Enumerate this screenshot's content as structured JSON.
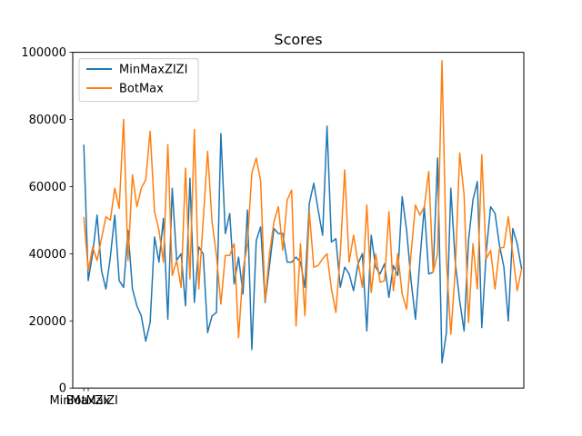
{
  "chart_data": {
    "type": "line",
    "title": "Scores",
    "xlabel": "",
    "ylabel": "",
    "ylim": [
      0,
      100000
    ],
    "yticks": [
      0,
      20000,
      40000,
      60000,
      80000,
      100000
    ],
    "yticklabels": [
      "0",
      "20000",
      "40000",
      "60000",
      "80000",
      "100000"
    ],
    "xlim": [
      -2.5,
      99.5
    ],
    "xticks": [
      0,
      1
    ],
    "xticklabels": [
      "MinMaxZIZI",
      "BotMax"
    ],
    "grid": false,
    "legend": "top-left",
    "series": [
      {
        "name": "MinMaxZIZI",
        "color": "#1f77b4",
        "values": [
          72500,
          32000,
          40000,
          51500,
          35000,
          29500,
          39000,
          51500,
          32000,
          30000,
          47000,
          29500,
          24500,
          21500,
          14000,
          19500,
          45000,
          37500,
          50500,
          20500,
          59500,
          38000,
          40000,
          24500,
          62500,
          25500,
          42000,
          40000,
          16500,
          21500,
          22500,
          75800,
          46000,
          52000,
          31000,
          39000,
          28000,
          53000,
          11500,
          44000,
          48000,
          25500,
          36500,
          47500,
          46000,
          46000,
          37500,
          37500,
          39000,
          37500,
          30000,
          55000,
          61000,
          53000,
          45500,
          78000,
          43500,
          44500,
          30000,
          36000,
          34000,
          29000,
          37000,
          40000,
          17000,
          45500,
          36000,
          34000,
          37000,
          27000,
          36500,
          33500,
          57000,
          47000,
          32000,
          20500,
          38000,
          54000,
          34000,
          34500,
          68500,
          7500,
          16500,
          59500,
          37500,
          26000,
          17000,
          44000,
          56000,
          61500,
          18000,
          40500,
          54000,
          52000,
          42500,
          36000,
          20000,
          47500,
          43000,
          35500
        ]
      },
      {
        "name": "BotMax",
        "color": "#ff7f0e",
        "values": [
          51000,
          35000,
          42000,
          38000,
          44500,
          51000,
          50000,
          59500,
          53500,
          80000,
          38000,
          63500,
          54000,
          59500,
          62000,
          76500,
          52500,
          47000,
          37500,
          72500,
          33500,
          38000,
          30000,
          65500,
          32500,
          77000,
          29500,
          50000,
          70500,
          49500,
          39500,
          25000,
          39500,
          39500,
          43000,
          15000,
          35000,
          43000,
          64000,
          68500,
          61500,
          26000,
          40000,
          49500,
          54000,
          41000,
          56000,
          59000,
          18500,
          43000,
          21500,
          52500,
          36000,
          36500,
          38500,
          40000,
          29500,
          22500,
          40000,
          65000,
          37500,
          45500,
          37500,
          30000,
          54500,
          28500,
          40000,
          31500,
          32000,
          52500,
          29000,
          40000,
          28000,
          23500,
          40000,
          54500,
          51500,
          54000,
          64500,
          34500,
          40000,
          97500,
          38000,
          16000,
          35000,
          70000,
          57500,
          19500,
          43000,
          29500,
          69500,
          38500,
          41000,
          29500,
          41500,
          42000,
          51000,
          40000,
          29000,
          35500
        ]
      }
    ]
  }
}
